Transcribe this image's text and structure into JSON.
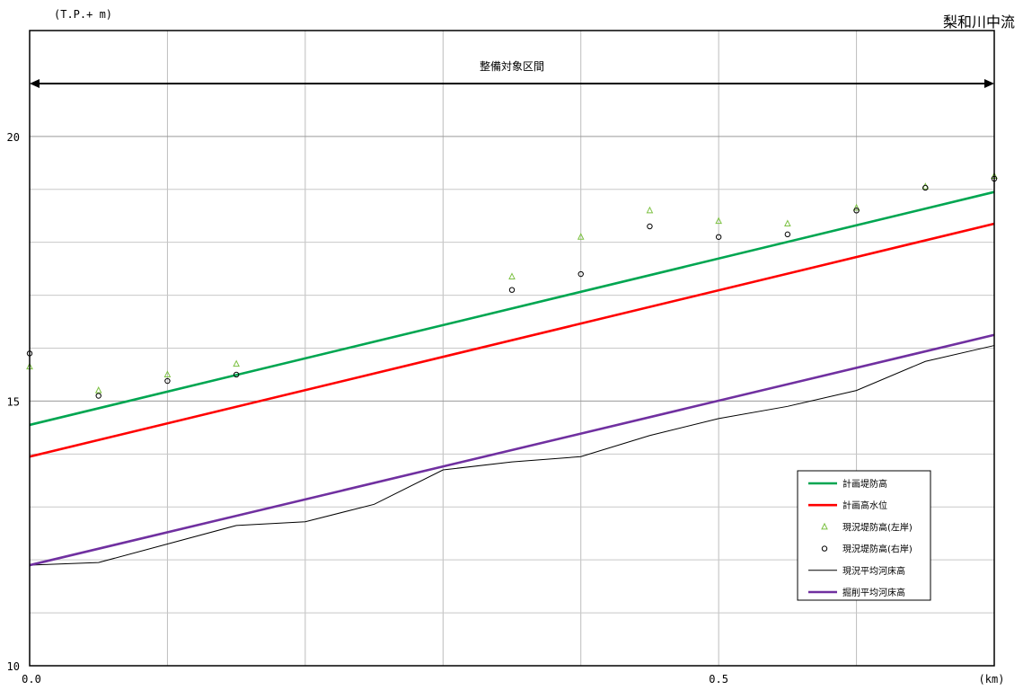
{
  "chart_data": {
    "type": "line",
    "title": "梨和川中流",
    "ylabel": "(T.P.+ m)",
    "xlabel": "(km)",
    "xlim": [
      0.0,
      0.7
    ],
    "ylim": [
      10,
      22
    ],
    "x_ticks": [
      "0.0",
      "0.5"
    ],
    "y_ticks": [
      "10",
      "15",
      "20"
    ],
    "grid": true,
    "legend_position": "bottom-right",
    "annotation": {
      "label": "整備対象区間",
      "from": 0.0,
      "to": 0.7
    },
    "series": [
      {
        "name": "計画堤防高",
        "style": "line",
        "color": "#00a651",
        "x": [
          0.0,
          0.7
        ],
        "y": [
          14.55,
          18.95
        ]
      },
      {
        "name": "計画高水位",
        "style": "line",
        "color": "#ff0000",
        "x": [
          0.0,
          0.7
        ],
        "y": [
          13.95,
          18.35
        ]
      },
      {
        "name": "現況堤防高(左岸)",
        "style": "triangle",
        "color": "#7cc142",
        "x": [
          0.0,
          0.05,
          0.1,
          0.15,
          0.35,
          0.4,
          0.45,
          0.5,
          0.55,
          0.6,
          0.65,
          0.7
        ],
        "y": [
          15.65,
          15.2,
          15.5,
          15.7,
          17.35,
          18.1,
          18.6,
          18.4,
          18.35,
          18.65,
          19.05,
          19.25
        ]
      },
      {
        "name": "現況堤防高(右岸)",
        "style": "circle",
        "color": "#000000",
        "x": [
          0.0,
          0.05,
          0.1,
          0.15,
          0.35,
          0.4,
          0.45,
          0.5,
          0.55,
          0.6,
          0.65,
          0.7
        ],
        "y": [
          15.9,
          15.1,
          15.38,
          15.5,
          17.1,
          17.4,
          18.3,
          18.1,
          18.15,
          18.6,
          19.03,
          19.2
        ]
      },
      {
        "name": "現況平均河床高",
        "style": "thin-line",
        "color": "#000000",
        "x": [
          0.0,
          0.05,
          0.1,
          0.15,
          0.2,
          0.25,
          0.3,
          0.35,
          0.4,
          0.45,
          0.5,
          0.55,
          0.6,
          0.65,
          0.7
        ],
        "y": [
          11.9,
          11.95,
          12.3,
          12.65,
          12.72,
          13.05,
          13.7,
          13.85,
          13.95,
          14.35,
          14.67,
          14.9,
          15.2,
          15.75,
          16.05
        ]
      },
      {
        "name": "掘削平均河床高",
        "style": "line",
        "color": "#7030a0",
        "x": [
          0.0,
          0.7
        ],
        "y": [
          11.9,
          16.25
        ]
      }
    ]
  }
}
